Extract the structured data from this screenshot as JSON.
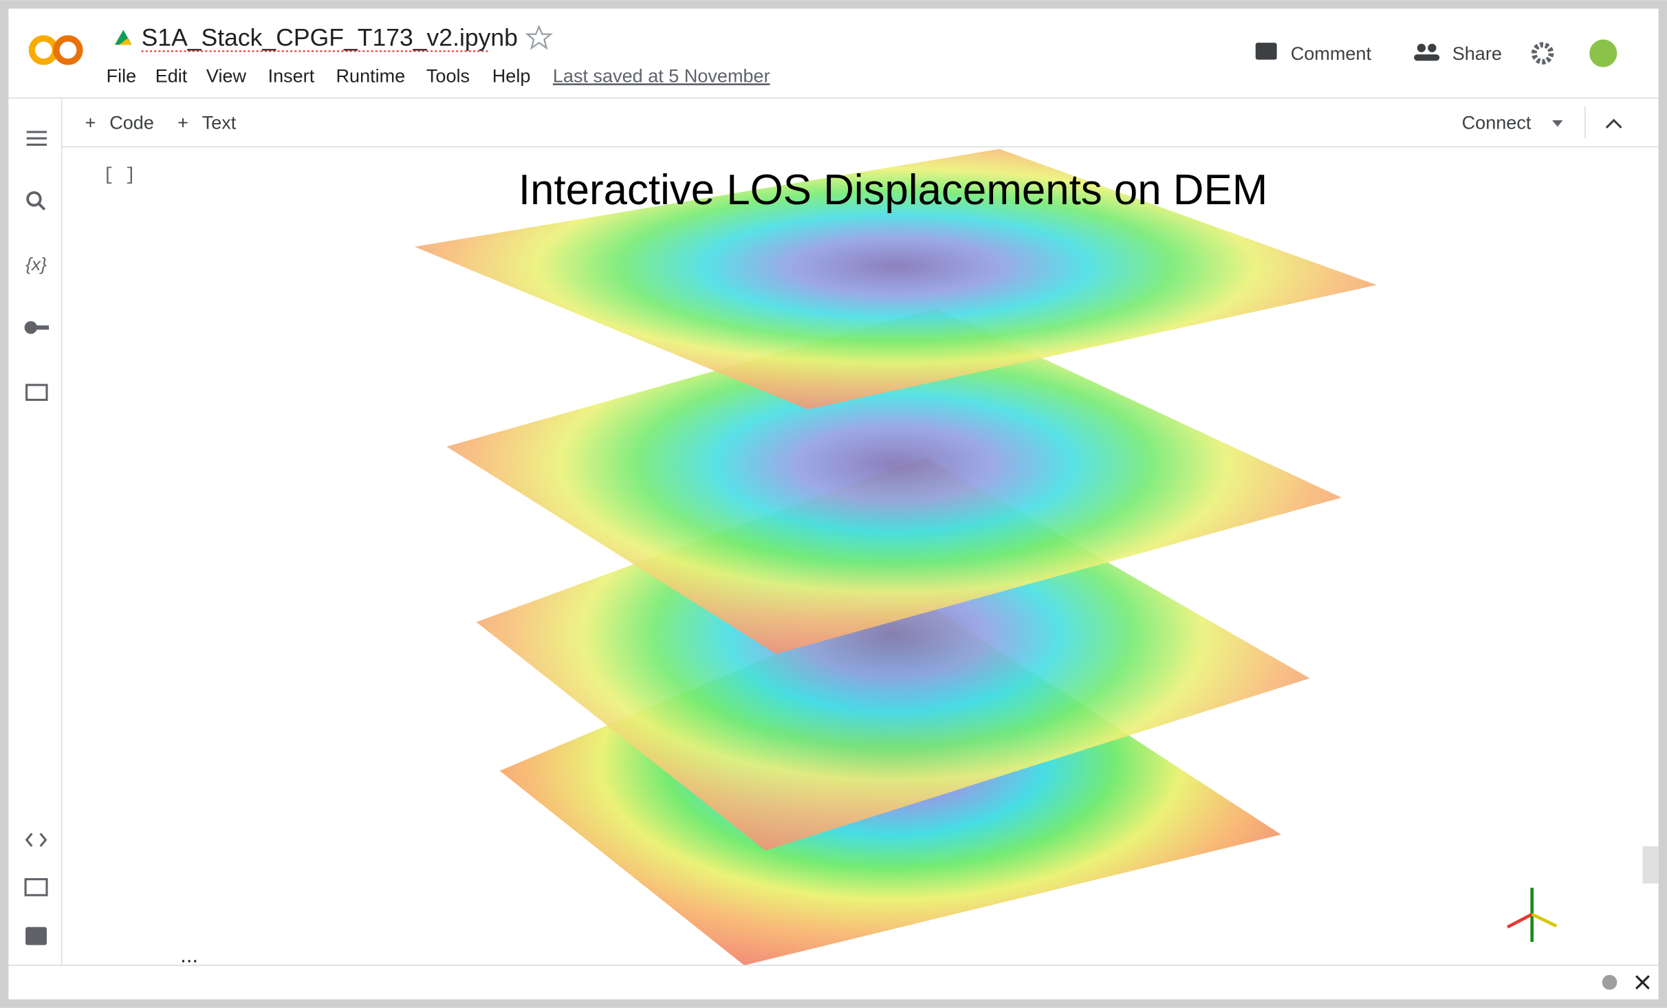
{
  "header": {
    "notebook_name": "S1A_Stack_CPGF_T173_v2.ipynb",
    "menu": [
      "File",
      "Edit",
      "View",
      "Insert",
      "Runtime",
      "Tools",
      "Help"
    ],
    "last_saved": "Last saved at 5 November",
    "comment": "Comment",
    "share": "Share"
  },
  "toolbar": {
    "add_code": "Code",
    "add_text": "Text",
    "connect": "Connect"
  },
  "sidebar": {
    "variables": "{x}"
  },
  "cell": {
    "run_indicator": "[ ]",
    "plot_title": "Interactive LOS Displacements on DEM",
    "more": "..."
  }
}
